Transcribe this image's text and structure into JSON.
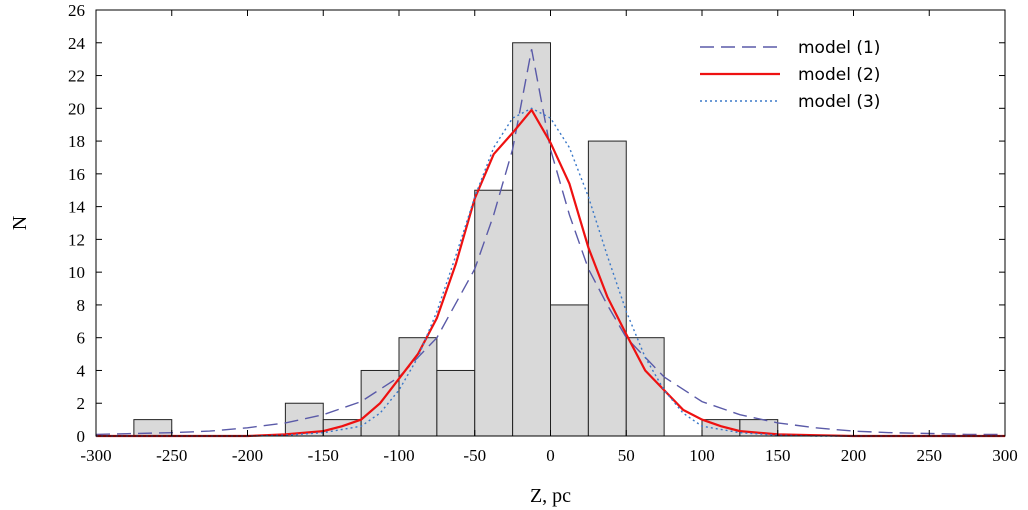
{
  "chart_data": {
    "type": "bar",
    "xlabel": "Z, pc",
    "ylabel": "N",
    "xlim": [
      -300,
      300
    ],
    "ylim": [
      0,
      26
    ],
    "grid": false,
    "legend_position": "top-right",
    "x_ticks": [
      "-300",
      "-250",
      "-200",
      "-150",
      "-100",
      "-50",
      "0",
      "50",
      "100",
      "150",
      "200",
      "250",
      "300"
    ],
    "y_ticks": [
      "0",
      "2",
      "4",
      "6",
      "8",
      "10",
      "12",
      "14",
      "16",
      "18",
      "20",
      "22",
      "24",
      "26"
    ],
    "histogram": {
      "name": "",
      "bin_width": 25,
      "bin_starts": [
        -275,
        -250,
        -225,
        -200,
        -175,
        -150,
        -125,
        -100,
        -75,
        -50,
        -25,
        0,
        25,
        50,
        75,
        100,
        125
      ],
      "counts": [
        1,
        0,
        0,
        0,
        2,
        1,
        4,
        6,
        4,
        15,
        24,
        8,
        18,
        6,
        0,
        1,
        1
      ]
    },
    "series": [
      {
        "name": "model (1)",
        "style": "dashed",
        "color": "#5a5aa8",
        "x": [
          -300,
          -275,
          -250,
          -225,
          -200,
          -175,
          -150,
          -125,
          -100,
          -75,
          -50,
          -37.5,
          -25,
          -12.5,
          0,
          12.5,
          25,
          37.5,
          50,
          75,
          100,
          125,
          150,
          175,
          200,
          225,
          250,
          275,
          300
        ],
        "y": [
          0.1,
          0.15,
          0.2,
          0.3,
          0.5,
          0.8,
          1.3,
          2.1,
          3.6,
          6.0,
          10.2,
          13.5,
          17.5,
          23.6,
          17.5,
          13.5,
          10.2,
          8.0,
          6.0,
          3.6,
          2.1,
          1.3,
          0.8,
          0.5,
          0.3,
          0.2,
          0.15,
          0.1,
          0.1
        ]
      },
      {
        "name": "model (2)",
        "style": "solid",
        "color": "#ee1111",
        "x": [
          -300,
          -275,
          -250,
          -225,
          -200,
          -175,
          -150,
          -137.5,
          -125,
          -112.5,
          -100,
          -87.5,
          -75,
          -62.5,
          -50,
          -37.5,
          -25,
          -12.5,
          0,
          12.5,
          25,
          37.5,
          50,
          62.5,
          75,
          87.5,
          100,
          112.5,
          125,
          150,
          175,
          200,
          225,
          250,
          275,
          300
        ],
        "y": [
          0,
          0,
          0,
          0,
          0,
          0.1,
          0.3,
          0.6,
          1.0,
          2.0,
          3.5,
          5.0,
          7.2,
          10.5,
          14.5,
          17.2,
          18.5,
          19.9,
          17.9,
          15.4,
          11.5,
          8.5,
          6.2,
          4.0,
          2.8,
          1.6,
          1.0,
          0.6,
          0.3,
          0.1,
          0.05,
          0,
          0,
          0,
          0,
          0
        ]
      },
      {
        "name": "model (3)",
        "style": "dotted",
        "color": "#3a78c8",
        "x": [
          -300,
          -250,
          -200,
          -175,
          -150,
          -125,
          -112.5,
          -100,
          -87.5,
          -75,
          -62.5,
          -50,
          -37.5,
          -25,
          -12.5,
          0,
          12.5,
          25,
          37.5,
          50,
          62.5,
          75,
          87.5,
          100,
          125,
          150,
          175,
          200,
          250,
          300
        ],
        "y": [
          0,
          0,
          0,
          0.05,
          0.2,
          0.6,
          1.4,
          2.8,
          4.8,
          7.6,
          11.0,
          14.6,
          17.6,
          19.4,
          20.0,
          19.4,
          17.6,
          14.6,
          11.0,
          7.6,
          4.8,
          2.8,
          1.4,
          0.6,
          0.2,
          0.05,
          0,
          0,
          0,
          0
        ]
      }
    ]
  }
}
